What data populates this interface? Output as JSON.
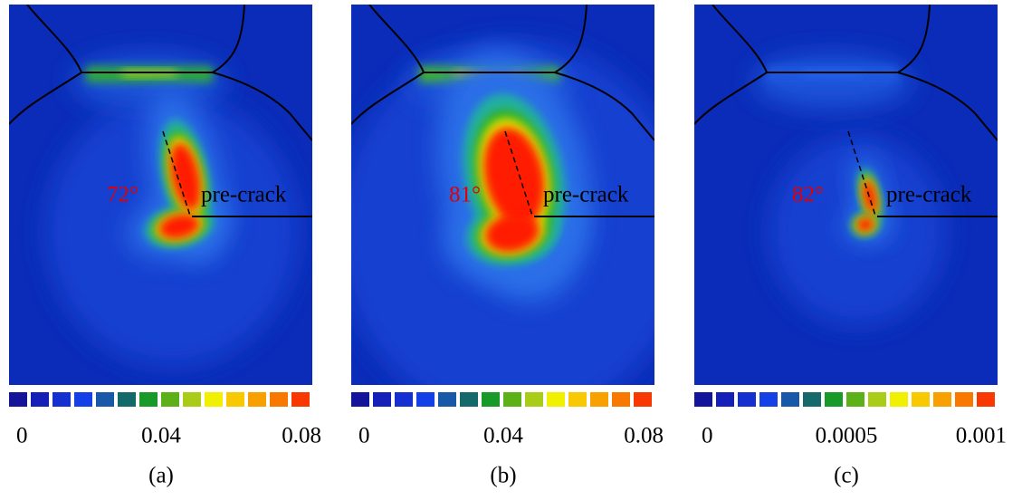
{
  "panels": [
    {
      "angle": "72°",
      "crack": "pre-crack",
      "colorbar_ticks": [
        "0",
        "0.04",
        "0.08"
      ],
      "caption": "(a)"
    },
    {
      "angle": "81°",
      "crack": "pre-crack",
      "colorbar_ticks": [
        "0",
        "0.04",
        "0.08"
      ],
      "caption": "(b)"
    },
    {
      "angle": "82°",
      "crack": "pre-crack",
      "colorbar_ticks": [
        "0",
        "0.0005",
        "0.001"
      ],
      "caption": "(c)"
    }
  ]
}
